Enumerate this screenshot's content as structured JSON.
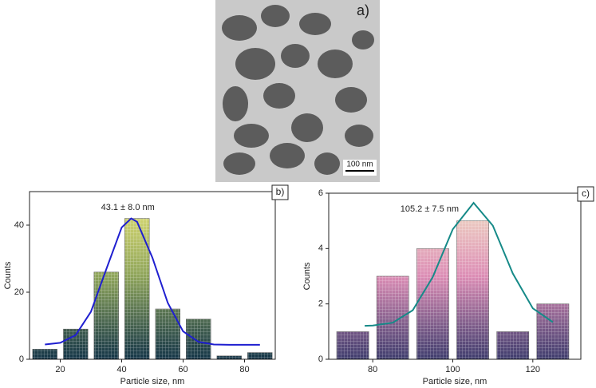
{
  "image": {
    "label": "a)",
    "scale_bar": "100 nm"
  },
  "chart_data": [
    {
      "type": "bar",
      "label": "b)",
      "annotation": "43.1 ± 8.0 nm",
      "xlabel": "Particle size, nm",
      "ylabel": "Counts",
      "xlim": [
        10,
        90
      ],
      "ylim": [
        0,
        50
      ],
      "xticks": [
        20,
        40,
        60,
        80
      ],
      "yticks": [
        0,
        20,
        40
      ],
      "series": [
        {
          "type": "bar",
          "x": [
            15,
            25,
            35,
            45,
            55,
            65,
            75,
            85
          ],
          "values": [
            3,
            9,
            26,
            42,
            15,
            12,
            1,
            2
          ],
          "gradient": [
            "#ece779",
            "#8fa55a",
            "#133447"
          ]
        },
        {
          "type": "line",
          "x": [
            15,
            20,
            25,
            30,
            35,
            40,
            43.1,
            45,
            50,
            55,
            60,
            65,
            70,
            75,
            80,
            85
          ],
          "values": [
            4.4,
            4.9,
            7.2,
            14.2,
            26.9,
            39.3,
            42.0,
            41.0,
            30.3,
            16.8,
            8.3,
            5.2,
            4.4,
            4.3,
            4.3,
            4.3
          ],
          "color": "#1f1fd0"
        }
      ]
    },
    {
      "type": "bar",
      "label": "c)",
      "annotation": "105.2 ± 7.5 nm",
      "xlabel": "Particle size, nm",
      "ylabel": "Counts",
      "xlim": [
        69,
        132
      ],
      "ylim": [
        0,
        6
      ],
      "xticks": [
        80,
        100,
        120
      ],
      "yticks": [
        0,
        2,
        4,
        6
      ],
      "series": [
        {
          "type": "bar",
          "x": [
            75,
            85,
            95,
            105,
            115,
            125
          ],
          "values": [
            1,
            3,
            4,
            5,
            1,
            2
          ],
          "gradient": [
            "#f3e6c6",
            "#dc8db5",
            "#3d3b6c"
          ]
        },
        {
          "type": "line",
          "x": [
            78,
            80,
            85,
            90,
            95,
            100,
            105.2,
            110,
            115,
            120,
            125
          ],
          "values": [
            1.21,
            1.22,
            1.32,
            1.77,
            2.97,
            4.7,
            5.65,
            4.83,
            3.1,
            1.84,
            1.34
          ],
          "color": "#168a88"
        }
      ]
    }
  ]
}
